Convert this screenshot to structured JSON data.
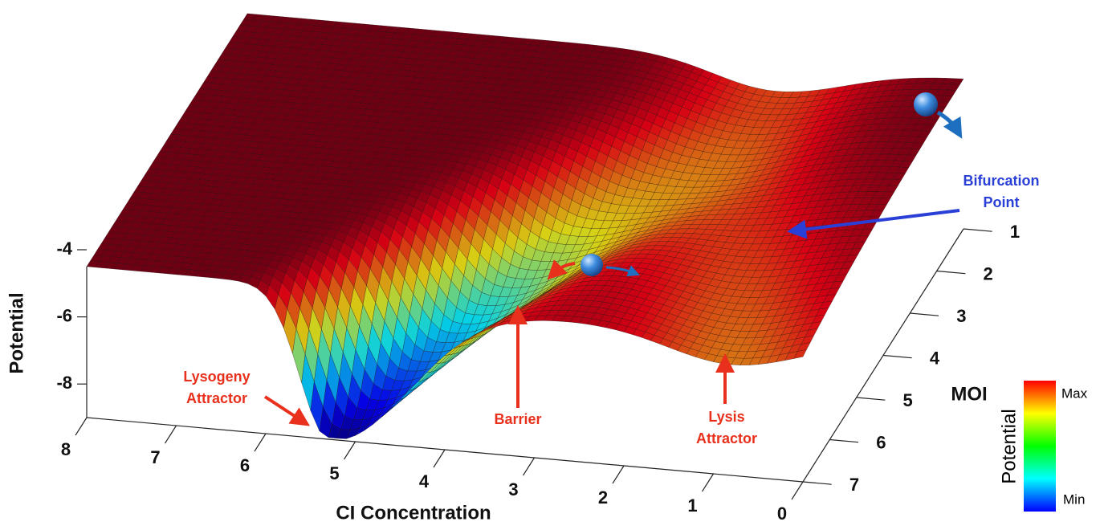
{
  "chart_data": {
    "type": "surface",
    "xlabel": "CI Concentration",
    "ylabel": "MOI",
    "zlabel": "Potential",
    "xlim": [
      0,
      8
    ],
    "xticks": [
      0,
      1,
      2,
      3,
      4,
      5,
      6,
      7,
      8
    ],
    "ylim": [
      1,
      7
    ],
    "yticks": [
      1,
      2,
      3,
      4,
      5,
      6,
      7
    ],
    "zlim": [
      -9,
      -4
    ],
    "zticks": [
      -4,
      -6,
      -8
    ],
    "colormap": "jet",
    "colorbar": {
      "label": "Potential",
      "max_label": "Max",
      "min_label": "Min"
    },
    "annotations": [
      {
        "lines": [
          "Lysogeny",
          "Attractor"
        ],
        "color": "#e8301c"
      },
      {
        "lines": [
          "Barrier"
        ],
        "color": "#e8301c"
      },
      {
        "lines": [
          "Lysis",
          "Attractor"
        ],
        "color": "#e8301c"
      },
      {
        "lines": [
          "Bifurcation",
          "Point"
        ],
        "color": "#2a3fd6"
      }
    ]
  }
}
